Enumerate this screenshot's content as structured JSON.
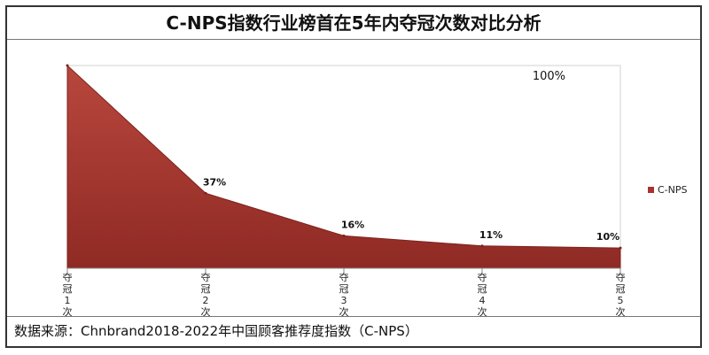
{
  "title": "C-NPS指数行业榜首在5年内夺冠次数对比分析",
  "source": "数据来源：Chnbrand2018-2022年中国顾客推荐度指数（C-NPS）",
  "chart_data": {
    "type": "area",
    "categories": [
      "夺冠1次",
      "夺冠2次",
      "夺冠3次",
      "夺冠4次",
      "夺冠5次"
    ],
    "series": [
      {
        "name": "C-NPS",
        "values": [
          100,
          37,
          16,
          11,
          10
        ],
        "color": "#a8332c"
      }
    ],
    "data_labels": [
      "100%",
      "37%",
      "16%",
      "11%",
      "10%"
    ],
    "ylim": [
      0,
      100
    ],
    "legend_position": "right",
    "grid": false
  }
}
